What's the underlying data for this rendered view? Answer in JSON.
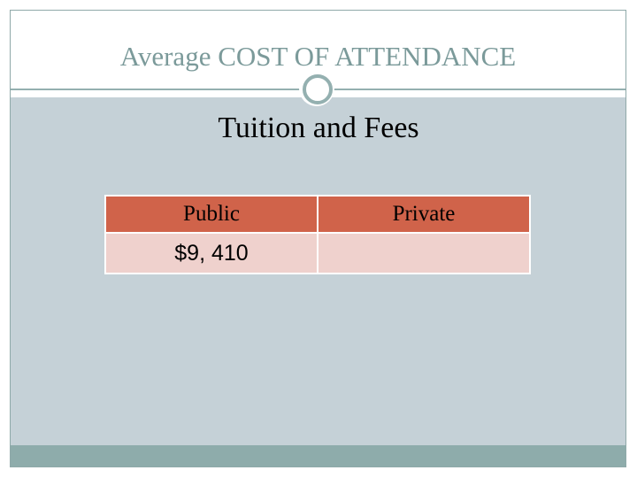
{
  "slide": {
    "title": "Average COST OF ATTENDANCE",
    "subtitle": "Tuition and Fees"
  },
  "table": {
    "headers": [
      "Public",
      "Private"
    ],
    "rows": [
      [
        "$9, 410",
        ""
      ]
    ]
  },
  "colors": {
    "title_text": "#7b9a9a",
    "content_background": "#c5d1d7",
    "footer_bar": "#8eacab",
    "table_header": "#d0634a",
    "table_body": "#efd1cd"
  }
}
